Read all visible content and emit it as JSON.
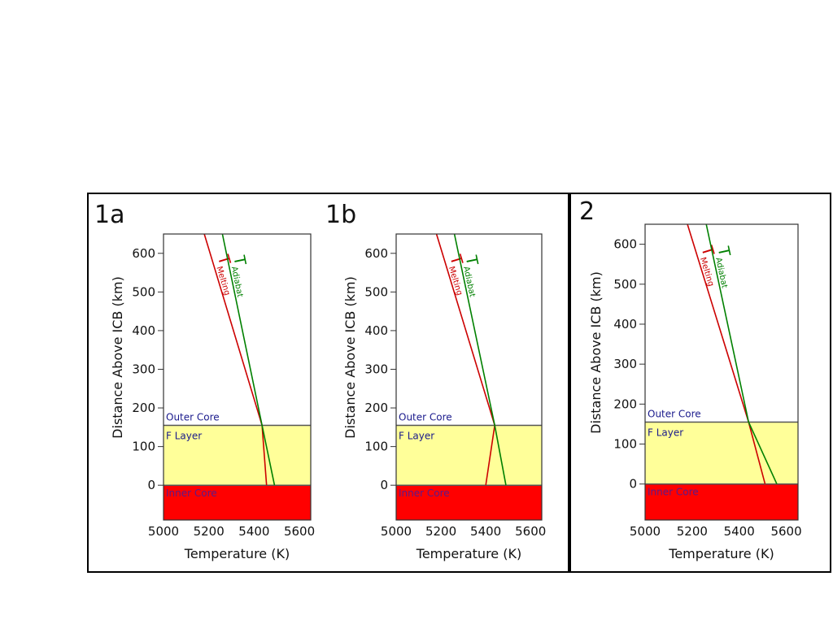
{
  "chart_data": [
    {
      "type": "line",
      "panel_label": "1a",
      "xlabel": "Temperature (K)",
      "ylabel": "Distance Above ICB (km)",
      "xlim": [
        5000,
        5650
      ],
      "ylim": [
        -90,
        650
      ],
      "xticks": [
        5000,
        5200,
        5400,
        5600
      ],
      "yticks": [
        0,
        100,
        200,
        300,
        400,
        500,
        600
      ],
      "regions": [
        {
          "name": "Inner Core",
          "from": -90,
          "to": 0,
          "color": "#ff0000",
          "text_color": "#5a1a8c"
        },
        {
          "name": "F Layer",
          "from": 0,
          "to": 155,
          "color": "#ffff99",
          "text_color": "#1a1a8c"
        },
        {
          "name": "Outer Core",
          "from": 155,
          "to": 650,
          "color": "#ffffff",
          "text_color": "#1a1a8c"
        }
      ],
      "series": [
        {
          "name": "T",
          "subscript": "Melting",
          "color": "#cc0000",
          "points": [
            [
              5180,
              650
            ],
            [
              5435,
              155
            ],
            [
              5455,
              0
            ]
          ]
        },
        {
          "name": "T",
          "subscript": "Adiabat",
          "color": "#008000",
          "points": [
            [
              5260,
              650
            ],
            [
              5435,
              155
            ],
            [
              5490,
              0
            ]
          ]
        }
      ]
    },
    {
      "type": "line",
      "panel_label": "1b",
      "xlabel": "Temperature (K)",
      "ylabel": "Distance Above ICB (km)",
      "xlim": [
        5000,
        5650
      ],
      "ylim": [
        -90,
        650
      ],
      "xticks": [
        5000,
        5200,
        5400,
        5600
      ],
      "yticks": [
        0,
        100,
        200,
        300,
        400,
        500,
        600
      ],
      "regions": [
        {
          "name": "Inner Core",
          "from": -90,
          "to": 0,
          "color": "#ff0000",
          "text_color": "#5a1a8c"
        },
        {
          "name": "F Layer",
          "from": 0,
          "to": 155,
          "color": "#ffff99",
          "text_color": "#1a1a8c"
        },
        {
          "name": "Outer Core",
          "from": 155,
          "to": 650,
          "color": "#ffffff",
          "text_color": "#1a1a8c"
        }
      ],
      "series": [
        {
          "name": "T",
          "subscript": "Melting",
          "color": "#cc0000",
          "points": [
            [
              5180,
              650
            ],
            [
              5440,
              155
            ],
            [
              5400,
              0
            ]
          ]
        },
        {
          "name": "T",
          "subscript": "Adiabat",
          "color": "#008000",
          "points": [
            [
              5260,
              650
            ],
            [
              5440,
              155
            ],
            [
              5490,
              0
            ]
          ]
        }
      ]
    },
    {
      "type": "line",
      "panel_label": "2",
      "xlabel": "Temperature (K)",
      "ylabel": "Distance Above ICB (km)",
      "xlim": [
        5000,
        5650
      ],
      "ylim": [
        -90,
        650
      ],
      "xticks": [
        5000,
        5200,
        5400,
        5600
      ],
      "yticks": [
        0,
        100,
        200,
        300,
        400,
        500,
        600
      ],
      "regions": [
        {
          "name": "Inner Core",
          "from": -90,
          "to": 0,
          "color": "#ff0000",
          "text_color": "#5a1a8c"
        },
        {
          "name": "F Layer",
          "from": 0,
          "to": 155,
          "color": "#ffff99",
          "text_color": "#1a1a8c"
        },
        {
          "name": "Outer Core",
          "from": 155,
          "to": 650,
          "color": "#ffffff",
          "text_color": "#1a1a8c"
        }
      ],
      "series": [
        {
          "name": "T",
          "subscript": "Melting",
          "color": "#cc0000",
          "points": [
            [
              5180,
              650
            ],
            [
              5440,
              155
            ],
            [
              5510,
              0
            ]
          ]
        },
        {
          "name": "T",
          "subscript": "Adiabat",
          "color": "#008000",
          "points": [
            [
              5260,
              650
            ],
            [
              5440,
              155
            ],
            [
              5560,
              0
            ]
          ]
        }
      ]
    }
  ]
}
